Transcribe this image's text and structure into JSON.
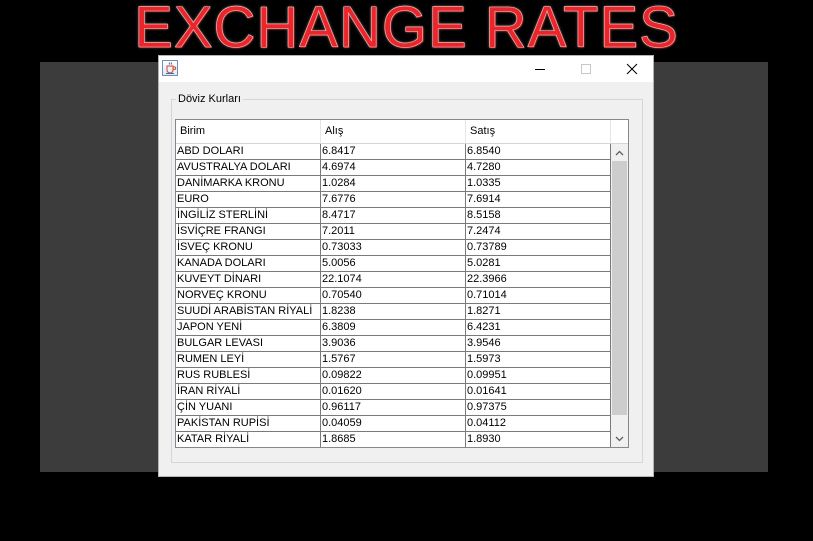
{
  "banner": {
    "title": "EXCHANGE RATES",
    "color": "#e8262b"
  },
  "window": {
    "icon": "java-cup-icon",
    "controls": [
      "minimize-icon",
      "maximize-icon",
      "close-icon"
    ]
  },
  "group": {
    "title": "Döviz Kurları"
  },
  "table": {
    "columns": [
      "Birim",
      "Alış",
      "Satış"
    ],
    "rows": [
      [
        "ABD DOLARI",
        "6.8417",
        "6.8540"
      ],
      [
        "AVUSTRALYA DOLARI",
        "4.6974",
        "4.7280"
      ],
      [
        "DANİMARKA KRONU",
        "1.0284",
        "1.0335"
      ],
      [
        "EURO",
        "7.6776",
        "7.6914"
      ],
      [
        "İNGİLİZ STERLİNİ",
        "8.4717",
        "8.5158"
      ],
      [
        "İSVİÇRE FRANGI",
        "7.2011",
        "7.2474"
      ],
      [
        "İSVEÇ KRONU",
        "0.73033",
        "0.73789"
      ],
      [
        "KANADA DOLARI",
        "5.0056",
        "5.0281"
      ],
      [
        "KUVEYT DİNARI",
        "22.1074",
        "22.3966"
      ],
      [
        "NORVEÇ KRONU",
        "0.70540",
        "0.71014"
      ],
      [
        "SUUDİ ARABİSTAN RİYALİ",
        "1.8238",
        "1.8271"
      ],
      [
        "JAPON YENİ",
        "6.3809",
        "6.4231"
      ],
      [
        "BULGAR LEVASI",
        "3.9036",
        "3.9546"
      ],
      [
        "RUMEN LEYİ",
        "1.5767",
        "1.5973"
      ],
      [
        "RUS RUBLESİ",
        "0.09822",
        "0.09951"
      ],
      [
        "İRAN RİYALİ",
        "0.01620",
        "0.01641"
      ],
      [
        "ÇİN YUANI",
        "0.96117",
        "0.97375"
      ],
      [
        "PAKİSTAN RUPİSİ",
        "0.04059",
        "0.04112"
      ],
      [
        "KATAR RİYALİ",
        "1.8685",
        "1.8930"
      ]
    ]
  },
  "scrollbar": {
    "icons": [
      "chevron-up-icon",
      "chevron-down-icon"
    ]
  }
}
